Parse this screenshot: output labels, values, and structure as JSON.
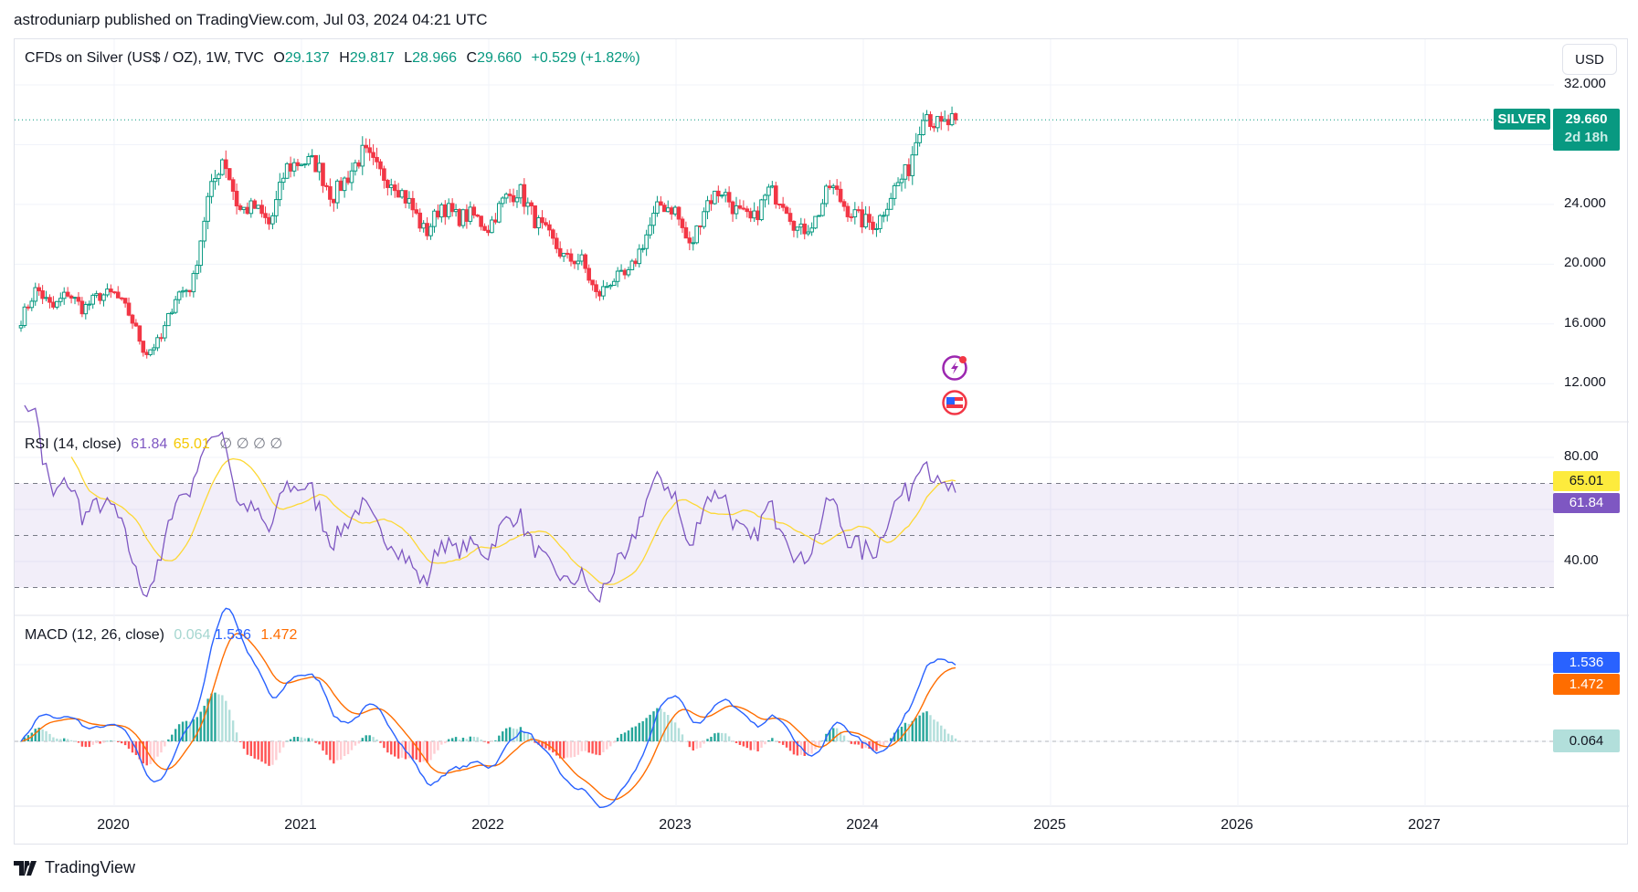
{
  "header": {
    "published": "astroduniarp published on TradingView.com, Jul 03, 2024 04:21 UTC"
  },
  "legend": {
    "symbol": "CFDs on Silver (US$ / OZ), 1W, TVC",
    "o_label": "O",
    "o": "29.137",
    "h_label": "H",
    "h": "29.817",
    "l_label": "L",
    "l": "28.966",
    "c_label": "C",
    "c": "29.660",
    "change": "+0.529 (+1.82%)"
  },
  "price_axis": {
    "currency_button": "USD",
    "ticks": [
      "32.000",
      "24.000",
      "20.000",
      "16.000",
      "12.000"
    ],
    "tick_values": [
      32,
      24,
      20,
      16,
      12
    ],
    "symbol_tag": "SILVER",
    "last_price": "29.660",
    "countdown": "2d 18h"
  },
  "rsi": {
    "title": "RSI (14, close)",
    "value": "61.84",
    "ma": "65.01",
    "extras": "∅ ∅ ∅ ∅",
    "ticks": [
      "80.00",
      "40.00"
    ],
    "levels": [
      70,
      50,
      30
    ]
  },
  "macd": {
    "title": "MACD (12, 26, close)",
    "hist": "0.064",
    "macd": "1.536",
    "signal": "1.472"
  },
  "time_axis": {
    "labels": [
      "2020",
      "2021",
      "2022",
      "2023",
      "2024",
      "2025",
      "2026",
      "2027"
    ]
  },
  "event_icons": [
    "earnings-flash-icon",
    "us-flag-economic-event-icon"
  ],
  "footer": {
    "brand": "TradingView"
  },
  "colors": {
    "up": "#089981",
    "down": "#f23645",
    "rsi": "#7e57c2",
    "rsi_ma": "#fdd835",
    "macd": "#2962ff",
    "signal": "#ff6d00",
    "hist_up": "#26a69a",
    "hist_up_light": "#b2dfdb",
    "hist_dn": "#ff5252",
    "hist_dn_light": "#ffcdd2"
  },
  "chart_data": {
    "type": "candlestick",
    "interval": "1W",
    "start": "2019-07",
    "monthly_close": [
      16.3,
      18.4,
      17.0,
      18.1,
      17.0,
      17.9,
      18.0,
      16.6,
      14.0,
      15.0,
      18.0,
      18.5,
      24.3,
      27.3,
      23.6,
      23.8,
      22.6,
      26.4,
      26.9,
      26.7,
      24.5,
      25.9,
      27.5,
      26.1,
      25.5,
      24.0,
      22.0,
      24.0,
      23.1,
      23.3,
      22.4,
      24.3,
      25.0,
      23.0,
      21.7,
      20.3,
      20.3,
      17.8,
      19.0,
      19.2,
      21.5,
      24.0,
      23.7,
      21.0,
      24.1,
      25.0,
      23.5,
      22.8,
      24.9,
      24.3,
      22.1,
      22.9,
      25.3,
      23.8,
      22.9,
      22.7,
      24.9,
      26.3,
      30.4,
      29.1,
      29.66
    ],
    "ylim": [
      9.5,
      33.5
    ],
    "grid": true
  }
}
